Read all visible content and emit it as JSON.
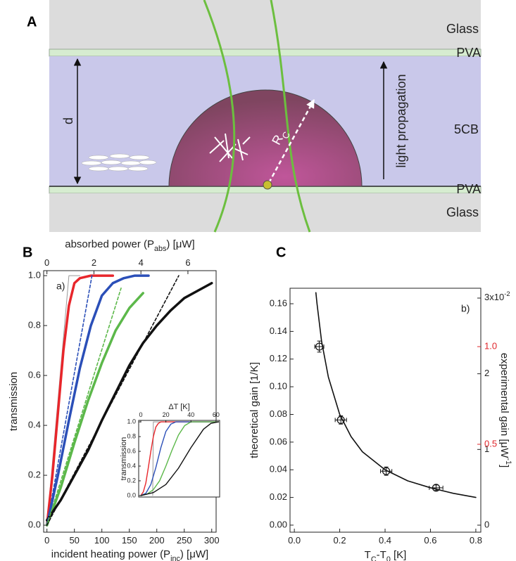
{
  "figure": {
    "panels": [
      "A",
      "B",
      "C"
    ]
  },
  "diagram": {
    "glass_top": "Glass",
    "pva_top": "PVA",
    "liquid_crystal": "5CB",
    "pva_bottom": "PVA",
    "glass_bottom": "Glass",
    "thickness": "d",
    "radius": [
      {
        "text": "R"
      },
      {
        "text": "C",
        "sub": true
      }
    ],
    "light": "light propagation"
  },
  "chart_data": [
    {
      "type": "line",
      "label": "a)",
      "xlabel": [
        {
          "text": "incident heating power (P"
        },
        {
          "text": "inc",
          "sub": true
        },
        {
          "text": ") [μW]"
        }
      ],
      "x2label": [
        {
          "text": "absorbed power (P"
        },
        {
          "text": "abs",
          "sub": true
        },
        {
          "text": ") [μW]"
        }
      ],
      "ylabel": "transmission",
      "xlim": [
        -6,
        308
      ],
      "xticks": [
        0,
        50,
        100,
        150,
        200,
        250,
        300
      ],
      "x2lim": [
        -0.14,
        7.2
      ],
      "x2ticks": [
        0,
        2,
        4,
        6
      ],
      "ylim": [
        -0.028,
        1.02
      ],
      "yticks": [
        {
          "value": 0,
          "label": "0.0"
        },
        0.2,
        0.4,
        0.6,
        0.8,
        {
          "value": 1,
          "label": "1.0"
        }
      ],
      "series": [
        {
          "color": "#999999",
          "line": "thin",
          "x": [
            0,
            40,
            60
          ],
          "values": [
            0,
            1,
            1
          ]
        },
        {
          "color": "#e8262b",
          "line": "solid",
          "x": [
            0,
            10,
            20,
            30,
            40,
            50,
            60,
            80,
            100,
            120
          ],
          "values": [
            0,
            0.2,
            0.45,
            0.7,
            0.88,
            0.97,
            0.99,
            1,
            1,
            1
          ]
        },
        {
          "color": "#2b4fb8",
          "line": "solid",
          "x": [
            0,
            20,
            40,
            60,
            80,
            100,
            120,
            140,
            160,
            185
          ],
          "values": [
            0,
            0.2,
            0.42,
            0.63,
            0.8,
            0.92,
            0.97,
            0.99,
            1,
            1
          ]
        },
        {
          "color": "#5cb84a",
          "line": "solid",
          "x": [
            0,
            25,
            50,
            75,
            100,
            125,
            150,
            175
          ],
          "values": [
            0,
            0.15,
            0.33,
            0.5,
            0.65,
            0.78,
            0.87,
            0.93
          ]
        },
        {
          "color": "#111111",
          "line": "solid",
          "x": [
            0,
            25,
            50,
            75,
            100,
            125,
            150,
            175,
            200,
            225,
            250,
            275,
            300
          ],
          "values": [
            0.02,
            0.1,
            0.2,
            0.3,
            0.42,
            0.53,
            0.64,
            0.73,
            0.8,
            0.86,
            0.91,
            0.94,
            0.97
          ]
        },
        {
          "color": "#2b4fb8",
          "line": "dashed",
          "x": [
            0,
            82
          ],
          "values": [
            0,
            1
          ]
        },
        {
          "color": "#5cb84a",
          "line": "dashed",
          "x": [
            0,
            135
          ],
          "values": [
            0,
            0.95
          ]
        },
        {
          "color": "#111111",
          "line": "dashed",
          "x": [
            0,
            240
          ],
          "values": [
            0,
            1
          ]
        }
      ]
    },
    {
      "type": "line",
      "x2label": "ΔT [K]",
      "ylabel": "transmission",
      "x2lim": [
        -1.7,
        62.9
      ],
      "x2ticks": [
        0,
        20,
        40,
        60
      ],
      "ylim": [
        -0.02,
        1.02
      ],
      "yticks": [
        {
          "value": 0,
          "label": "0.0"
        },
        0.2,
        0.4,
        0.6,
        0.8,
        {
          "value": 1,
          "label": "1.0"
        }
      ],
      "series": [
        {
          "color": "#999999",
          "line": "thin",
          "xaxis": "x2",
          "x": [
            9.5,
            10,
            62
          ],
          "values": [
            0,
            1,
            1
          ]
        },
        {
          "color": "#e8262b",
          "line": "solid",
          "xaxis": "x2",
          "x": [
            0,
            2,
            4,
            6,
            8,
            10,
            12,
            14,
            16,
            62
          ],
          "values": [
            0,
            0.05,
            0.17,
            0.38,
            0.6,
            0.8,
            0.93,
            0.98,
            1,
            1
          ]
        },
        {
          "color": "#2b4fb8",
          "line": "solid",
          "xaxis": "x2",
          "x": [
            0,
            4,
            8,
            12,
            16,
            20,
            24,
            28,
            62
          ],
          "values": [
            0,
            0.03,
            0.15,
            0.38,
            0.65,
            0.87,
            0.97,
            1,
            1
          ]
        },
        {
          "color": "#5cb84a",
          "line": "solid",
          "xaxis": "x2",
          "x": [
            0,
            5,
            10,
            15,
            20,
            25,
            30,
            35,
            40,
            62
          ],
          "values": [
            0,
            0.02,
            0.08,
            0.2,
            0.4,
            0.62,
            0.82,
            0.95,
            1,
            1
          ]
        },
        {
          "color": "#111111",
          "line": "solid",
          "xaxis": "x2",
          "x": [
            0,
            10,
            20,
            30,
            40,
            50,
            56,
            62
          ],
          "values": [
            0,
            0.04,
            0.15,
            0.37,
            0.65,
            0.9,
            0.98,
            1
          ]
        }
      ]
    },
    {
      "type": "scatter",
      "label": "b)",
      "xlabel": [
        {
          "text": "T"
        },
        {
          "text": "C",
          "sub": true
        },
        {
          "text": "-T"
        },
        {
          "text": "0",
          "sub": true
        },
        {
          "text": " [K]"
        }
      ],
      "ylabel": "theoretical gain [1/K]",
      "y2label": [
        {
          "text": "experimental gain [μW"
        },
        {
          "text": "-1",
          "sup": true
        },
        {
          "text": "]"
        }
      ],
      "xlim": [
        -0.019,
        0.822
      ],
      "xticks": [
        {
          "value": 0,
          "label": "0.0"
        },
        0.2,
        0.4,
        0.6,
        0.8
      ],
      "ylim": [
        -0.0051,
        0.1712
      ],
      "yticks": [
        {
          "value": 0,
          "label": "0.00"
        },
        0.02,
        0.04,
        0.06,
        0.08,
        {
          "value": 0.1,
          "label": "0.10"
        },
        0.12,
        0.14,
        0.16
      ],
      "y2lim": [
        -0.093,
        3.13
      ],
      "y2ticks": [
        0,
        1,
        2,
        {
          "value": 3,
          "label": [
            {
              "text": "3x10"
            },
            {
              "text": "-2",
              "sup": true
            }
          ]
        }
      ],
      "y3lim": [
        0.05,
        1.299
      ],
      "y3ticks": [
        0.5,
        {
          "value": 1,
          "label": "1.0"
        }
      ],
      "y3color": "#e0262b",
      "series": [
        {
          "color": "#111111",
          "mode": "markers",
          "x": [
            0.11,
            0.205,
            0.405,
            0.625
          ],
          "values": [
            0.129,
            0.076,
            0.039,
            0.027
          ],
          "xerr": [
            0.02,
            0.025,
            0.025,
            0.03
          ],
          "yerr": [
            0.004,
            0.003,
            0.003,
            0.002
          ]
        },
        {
          "color": "#111111",
          "line": "solid",
          "x": [
            0.095,
            0.1,
            0.12,
            0.15,
            0.2,
            0.25,
            0.3,
            0.4,
            0.5,
            0.6,
            0.7,
            0.8
          ],
          "values": [
            0.168,
            0.16,
            0.133,
            0.107,
            0.08,
            0.064,
            0.053,
            0.04,
            0.032,
            0.027,
            0.023,
            0.02
          ]
        }
      ]
    }
  ]
}
